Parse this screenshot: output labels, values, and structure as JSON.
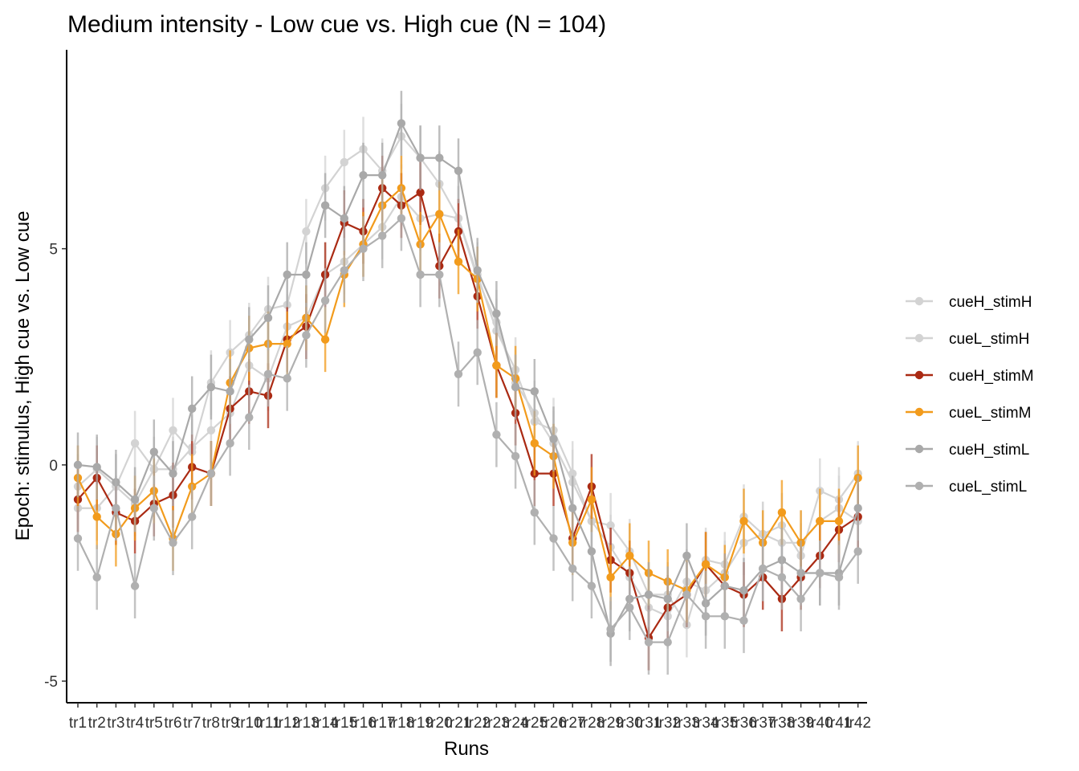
{
  "chart_data": {
    "type": "line",
    "title": "Medium intensity - Low cue vs. High cue (N = 104)",
    "xlabel": "Runs",
    "ylabel": "Epoch: stimulus, High cue vs. Low cue",
    "ylim": [
      -5.5,
      9.6
    ],
    "yticks": [
      -5,
      0,
      5
    ],
    "grid": false,
    "legend_position": "right",
    "categories": [
      "tr1",
      "tr2",
      "tr3",
      "tr4",
      "tr5",
      "tr6",
      "tr7",
      "tr8",
      "tr9",
      "tr10",
      "tr11",
      "tr12",
      "tr13",
      "tr14",
      "tr15",
      "tr16",
      "tr17",
      "tr18",
      "tr19",
      "tr20",
      "tr21",
      "tr22",
      "tr23",
      "tr24",
      "tr25",
      "tr26",
      "tr27",
      "tr28",
      "tr29",
      "tr30",
      "tr31",
      "tr32",
      "tr33",
      "tr34",
      "tr35",
      "tr36",
      "tr37",
      "tr38",
      "tr39",
      "tr40",
      "tr41",
      "tr42"
    ],
    "series": [
      {
        "name": "cueH_stimH",
        "color": "#d3d3d3",
        "values": [
          -0.5,
          -0.1,
          -0.5,
          0.5,
          -0.1,
          0.8,
          0.3,
          1.9,
          2.6,
          3.0,
          3.6,
          3.7,
          5.4,
          6.4,
          7.0,
          7.3,
          6.8,
          7.6,
          7.1,
          6.5,
          5.7,
          4.4,
          3.1,
          2.2,
          1.0,
          0.8,
          -0.2,
          -1.3,
          -1.4,
          -2.0,
          -3.0,
          -3.0,
          -3.7,
          -2.2,
          -2.3,
          -1.2,
          -1.6,
          -1.4,
          -2.1,
          -0.6,
          -0.8,
          -0.2
        ]
      },
      {
        "name": "cueL_stimH",
        "color": "#d3d3d3",
        "values": [
          -1.0,
          -1.0,
          -0.5,
          -0.9,
          -0.1,
          -0.1,
          0.4,
          0.8,
          1.2,
          2.3,
          2.0,
          3.2,
          3.4,
          4.4,
          4.7,
          5.1,
          5.5,
          6.2,
          5.7,
          5.8,
          5.7,
          4.3,
          3.3,
          1.9,
          1.2,
          0.5,
          -0.4,
          -1.3,
          -1.9,
          -2.6,
          -3.3,
          -3.5,
          -2.7,
          -2.9,
          -2.5,
          -1.8,
          -1.6,
          -1.8,
          -1.8,
          -1.3,
          -1.0,
          -1.3
        ]
      },
      {
        "name": "cueH_stimM",
        "color": "#aa2a13",
        "values": [
          -0.8,
          -0.3,
          -1.1,
          -1.3,
          -0.9,
          -0.7,
          -0.05,
          -0.2,
          1.3,
          1.7,
          1.6,
          2.9,
          3.2,
          4.4,
          5.6,
          5.4,
          6.4,
          6.0,
          6.3,
          4.6,
          5.4,
          3.9,
          2.3,
          1.2,
          -0.2,
          -0.2,
          -1.7,
          -0.5,
          -2.2,
          -2.5,
          -4.0,
          -3.3,
          -3.0,
          -2.3,
          -2.8,
          -3.0,
          -2.6,
          -3.1,
          -2.6,
          -2.1,
          -1.5,
          -1.2
        ]
      },
      {
        "name": "cueL_stimM",
        "color": "#f29b1c",
        "values": [
          -0.3,
          -1.2,
          -1.6,
          -1.0,
          -0.6,
          -1.7,
          -0.5,
          -0.2,
          1.9,
          2.7,
          2.8,
          2.8,
          3.4,
          2.9,
          4.4,
          5.1,
          6.0,
          6.4,
          5.1,
          5.8,
          4.7,
          4.3,
          2.3,
          2.0,
          0.5,
          0.2,
          -1.8,
          -0.8,
          -2.6,
          -2.1,
          -2.5,
          -2.7,
          -2.9,
          -2.3,
          -2.6,
          -1.3,
          -1.8,
          -1.1,
          -1.8,
          -1.3,
          -1.3,
          -0.3
        ]
      },
      {
        "name": "cueH_stimL",
        "color": "#a9a9a9",
        "values": [
          0.0,
          -0.05,
          -0.4,
          -0.8,
          0.3,
          -0.2,
          1.3,
          1.8,
          1.7,
          2.9,
          3.4,
          4.4,
          4.4,
          6.0,
          5.7,
          6.7,
          6.7,
          7.9,
          7.1,
          7.1,
          6.8,
          4.5,
          3.5,
          1.8,
          1.7,
          0.6,
          -1.0,
          -2.0,
          -3.9,
          -3.1,
          -3.0,
          -3.1,
          -2.1,
          -3.2,
          -2.8,
          -2.9,
          -2.4,
          -2.2,
          -2.5,
          -2.5,
          -2.5,
          -1.0
        ]
      },
      {
        "name": "cueL_stimL",
        "color": "#b0b0b0",
        "values": [
          -1.7,
          -2.6,
          -1.0,
          -2.8,
          -1.0,
          -1.8,
          -1.2,
          -0.2,
          0.5,
          1.1,
          2.1,
          2.0,
          3.0,
          3.8,
          4.5,
          5.0,
          5.3,
          5.7,
          4.4,
          4.4,
          2.1,
          2.6,
          0.7,
          0.2,
          -1.1,
          -1.7,
          -2.4,
          -2.8,
          -3.8,
          -3.3,
          -4.1,
          -4.1,
          -3.0,
          -3.5,
          -3.5,
          -3.6,
          -2.4,
          -2.6,
          -3.1,
          -2.5,
          -2.6,
          -2.0
        ]
      }
    ]
  }
}
